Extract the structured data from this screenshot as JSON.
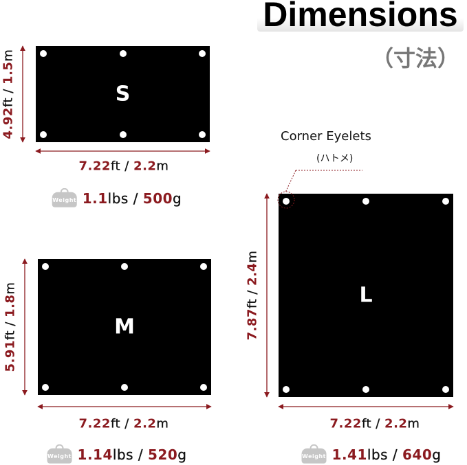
{
  "title": "Dimensions",
  "subtitle": "（寸法）",
  "callout": {
    "label": "Corner Eyelets",
    "sub": "(ハトメ)"
  },
  "weight_icon_label": "Weight",
  "colors": {
    "accent": "#8b1a1f",
    "tarp": "#000000"
  },
  "sizes": [
    {
      "letter": "S",
      "width": {
        "ft": "7.22",
        "m": "2.2"
      },
      "height": {
        "ft": "4.92",
        "m": "1.5"
      },
      "weight": {
        "lbs": "1.1",
        "g": "500"
      }
    },
    {
      "letter": "M",
      "width": {
        "ft": "7.22",
        "m": "2.2"
      },
      "height": {
        "ft": "5.91",
        "m": "1.8"
      },
      "weight": {
        "lbs": "1.14",
        "g": "520"
      }
    },
    {
      "letter": "L",
      "width": {
        "ft": "7.22",
        "m": "2.2"
      },
      "height": {
        "ft": "7.87",
        "m": "2.4"
      },
      "weight": {
        "lbs": "1.41",
        "g": "640"
      }
    }
  ],
  "units": {
    "ft": "ft",
    "m": "m",
    "lbs": "lbs",
    "g": "g",
    "sep": " / "
  }
}
